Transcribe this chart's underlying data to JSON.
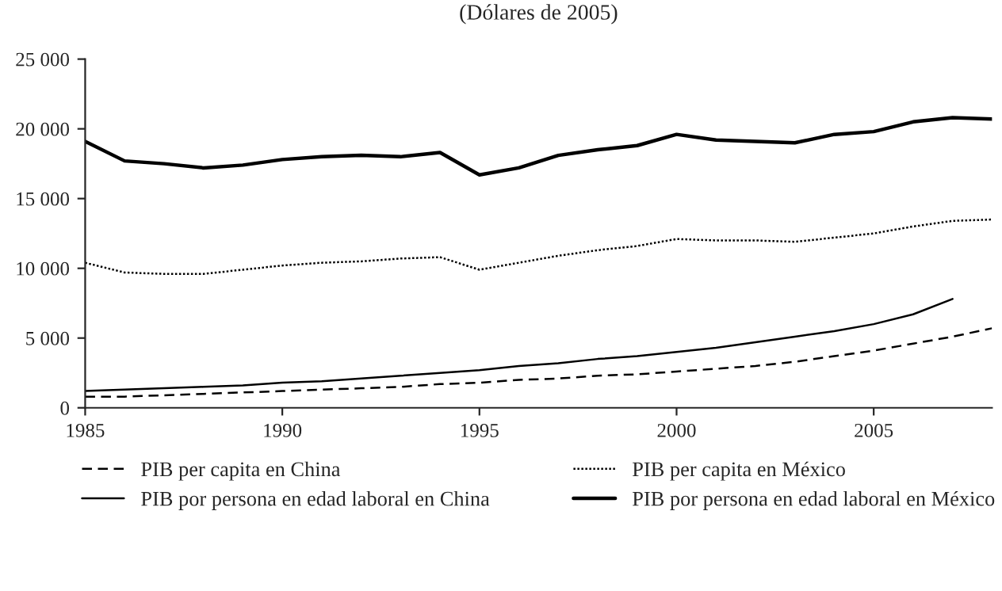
{
  "chart_data": {
    "type": "line",
    "title": "(Dólares de 2005)",
    "legend": "bottom",
    "grid": false,
    "xlim": [
      1985,
      2008
    ],
    "xticks": [
      1985,
      1990,
      1995,
      2000,
      2005
    ],
    "ylim": [
      0,
      25000
    ],
    "yticks": [
      {
        "value": 0,
        "label": "0"
      },
      {
        "value": 5000,
        "label": "5 000"
      },
      {
        "value": 10000,
        "label": "10 000"
      },
      {
        "value": 15000,
        "label": "15 000"
      },
      {
        "value": 20000,
        "label": "20 000"
      },
      {
        "value": 25000,
        "label": "25 000"
      }
    ],
    "series": [
      {
        "name": "PIB per capita en China",
        "color": "#000000",
        "line_style": "dashed",
        "x": [
          1985,
          1986,
          1987,
          1988,
          1989,
          1990,
          1991,
          1992,
          1993,
          1994,
          1995,
          1996,
          1997,
          1998,
          1999,
          2000,
          2001,
          2002,
          2003,
          2004,
          2005,
          2006,
          2007,
          2008
        ],
        "values": [
          800,
          800,
          900,
          1000,
          1100,
          1200,
          1300,
          1400,
          1500,
          1700,
          1800,
          2000,
          2100,
          2300,
          2400,
          2600,
          2800,
          3000,
          3300,
          3700,
          4100,
          4600,
          5100,
          5700
        ]
      },
      {
        "name": "PIB per capita en México",
        "color": "#000000",
        "line_style": "dotted",
        "x": [
          1985,
          1986,
          1987,
          1988,
          1989,
          1990,
          1991,
          1992,
          1993,
          1994,
          1995,
          1996,
          1997,
          1998,
          1999,
          2000,
          2001,
          2002,
          2003,
          2004,
          2005,
          2006,
          2007,
          2008
        ],
        "values": [
          10400,
          9700,
          9600,
          9600,
          9900,
          10200,
          10400,
          10500,
          10700,
          10800,
          9900,
          10400,
          10900,
          11300,
          11600,
          12100,
          12000,
          12000,
          11900,
          12200,
          12500,
          13000,
          13400,
          13500
        ]
      },
      {
        "name": "PIB por persona en edad laboral en China",
        "color": "#000000",
        "line_style": "solid",
        "x": [
          1985,
          1986,
          1987,
          1988,
          1989,
          1990,
          1991,
          1992,
          1993,
          1994,
          1995,
          1996,
          1997,
          1998,
          1999,
          2000,
          2001,
          2002,
          2003,
          2004,
          2005,
          2006,
          2007
        ],
        "values": [
          1200,
          1300,
          1400,
          1500,
          1600,
          1800,
          1900,
          2100,
          2300,
          2500,
          2700,
          3000,
          3200,
          3500,
          3700,
          4000,
          4300,
          4700,
          5100,
          5500,
          6000,
          6700,
          7800
        ]
      },
      {
        "name": "PIB por persona en edad laboral en México",
        "color": "#000000",
        "line_style": "solid",
        "x": [
          1985,
          1986,
          1987,
          1988,
          1989,
          1990,
          1991,
          1992,
          1993,
          1994,
          1995,
          1996,
          1997,
          1998,
          1999,
          2000,
          2001,
          2002,
          2003,
          2004,
          2005,
          2006,
          2007,
          2008
        ],
        "values": [
          19100,
          17700,
          17500,
          17200,
          17400,
          17800,
          18000,
          18100,
          18000,
          18300,
          16700,
          17200,
          18100,
          18500,
          18800,
          19600,
          19200,
          19100,
          19000,
          19600,
          19800,
          20500,
          20800,
          20700
        ]
      }
    ]
  }
}
